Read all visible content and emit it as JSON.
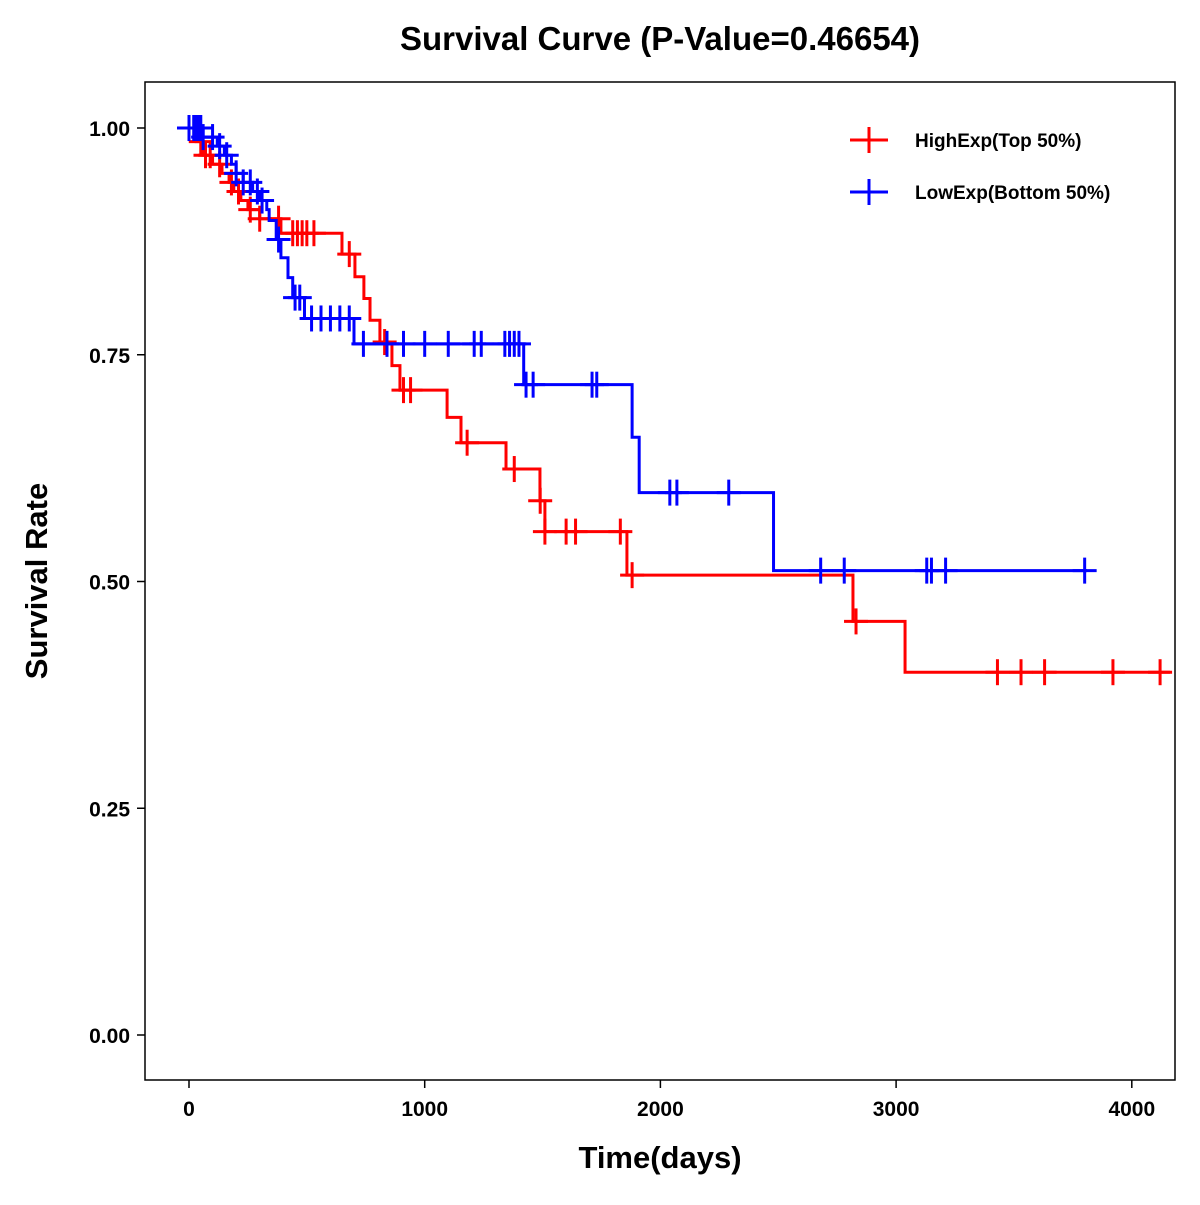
{
  "chart_data": {
    "type": "line",
    "title": "Survival Curve (P-Value=0.46654)",
    "xlabel": "Time(days)",
    "ylabel": "Survival Rate",
    "xlim": [
      -200,
      4180
    ],
    "ylim": [
      -0.05,
      1.05
    ],
    "xticks": [
      0,
      1000,
      2000,
      3000,
      4000
    ],
    "xtick_labels": [
      "0",
      "1000",
      "2000",
      "3000",
      "4000"
    ],
    "yticks": [
      0,
      0.25,
      0.5,
      0.75,
      1.0
    ],
    "ytick_labels": [
      "0.00",
      "0.25",
      "0.50",
      "0.75",
      "1.00"
    ],
    "grid": false,
    "legend_position": "top-right",
    "series": [
      {
        "name": "HighExp(Top 50%)",
        "color": "#ff0000",
        "steps": [
          [
            0,
            1.0
          ],
          [
            30,
            0.985
          ],
          [
            60,
            0.97
          ],
          [
            100,
            0.96
          ],
          [
            140,
            0.95
          ],
          [
            170,
            0.94
          ],
          [
            190,
            0.93
          ],
          [
            220,
            0.92
          ],
          [
            250,
            0.91
          ],
          [
            300,
            0.9
          ],
          [
            390,
            0.884
          ],
          [
            649,
            0.861
          ],
          [
            704,
            0.836
          ],
          [
            742,
            0.812
          ],
          [
            768,
            0.788
          ],
          [
            810,
            0.764
          ],
          [
            861,
            0.738
          ],
          [
            895,
            0.711
          ],
          [
            1095,
            0.681
          ],
          [
            1154,
            0.653
          ],
          [
            1345,
            0.624
          ],
          [
            1489,
            0.589
          ],
          [
            1510,
            0.555
          ],
          [
            1858,
            0.507
          ],
          [
            2817,
            0.456
          ],
          [
            3038,
            0.4
          ]
        ],
        "end_time": 4162,
        "censored": [
          50,
          70,
          90,
          130,
          180,
          210,
          260,
          300,
          380,
          440,
          460,
          480,
          500,
          530,
          680,
          830,
          910,
          940,
          1180,
          1380,
          1490,
          1510,
          1600,
          1640,
          1830,
          1880,
          2830,
          3430,
          3530,
          3630,
          3920,
          4120
        ]
      },
      {
        "name": "LowExp(Bottom 50%)",
        "color": "#0000ff",
        "steps": [
          [
            0,
            1.0
          ],
          [
            60,
            0.99
          ],
          [
            120,
            0.98
          ],
          [
            150,
            0.97
          ],
          [
            180,
            0.96
          ],
          [
            200,
            0.95
          ],
          [
            230,
            0.94
          ],
          [
            270,
            0.93
          ],
          [
            300,
            0.92
          ],
          [
            330,
            0.91
          ],
          [
            340,
            0.898
          ],
          [
            370,
            0.877
          ],
          [
            390,
            0.857
          ],
          [
            420,
            0.835
          ],
          [
            440,
            0.813
          ],
          [
            490,
            0.79
          ],
          [
            700,
            0.762
          ],
          [
            1420,
            0.717
          ],
          [
            1880,
            0.659
          ],
          [
            1910,
            0.598
          ],
          [
            2480,
            0.512
          ]
        ],
        "end_time": 3810,
        "censored": [
          0,
          20,
          30,
          40,
          50,
          60,
          100,
          130,
          160,
          200,
          230,
          260,
          290,
          310,
          380,
          450,
          470,
          520,
          560,
          600,
          640,
          680,
          740,
          840,
          910,
          1000,
          1100,
          1210,
          1240,
          1340,
          1360,
          1380,
          1400,
          1430,
          1460,
          1710,
          1730,
          2040,
          2070,
          2290,
          2680,
          2780,
          3130,
          3150,
          3210,
          3800
        ]
      }
    ]
  }
}
